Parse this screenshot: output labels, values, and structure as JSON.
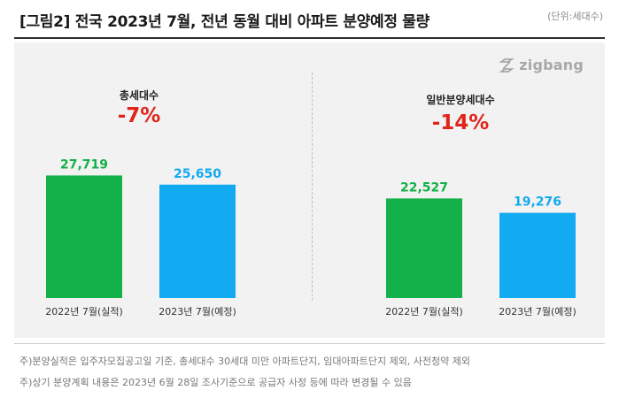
{
  "header": {
    "title": "[그림2] 전국 2023년 7월, 전년 동월 대비 아파트 분양예정 물량",
    "unit": "(단위:세대수)"
  },
  "brand": {
    "logo_text": "zigbang",
    "icon": "zigbang-logo-icon"
  },
  "colors": {
    "series_2022": "#14b04a",
    "series_2023": "#12aaf0",
    "change": "#e0251b"
  },
  "chart_data": [
    {
      "type": "bar",
      "title": "총세대수",
      "change_label": "-7%",
      "categories": [
        "2022년 7월(실적)",
        "2023년 7월(예정)"
      ],
      "values": [
        27719,
        25650
      ],
      "value_labels": [
        "27,719",
        "25,650"
      ],
      "ylim": [
        0,
        32000
      ]
    },
    {
      "type": "bar",
      "title": "일반분양세대수",
      "change_label": "-14%",
      "categories": [
        "2022년 7월(실적)",
        "2023년 7월(예정)"
      ],
      "values": [
        22527,
        19276
      ],
      "value_labels": [
        "22,527",
        "19,276"
      ],
      "ylim": [
        0,
        32000
      ]
    }
  ],
  "notes": [
    "주)분양실적은 입주자모집공고일 기준, 총세대수 30세대 미만 아파트단지, 임대아파트단지 제외, 사전청약 제외",
    "주)상기 분양계획 내용은 2023년 6월 28일 조사기준으로 공급자 사정 등에 따라 변경될 수 있음"
  ]
}
